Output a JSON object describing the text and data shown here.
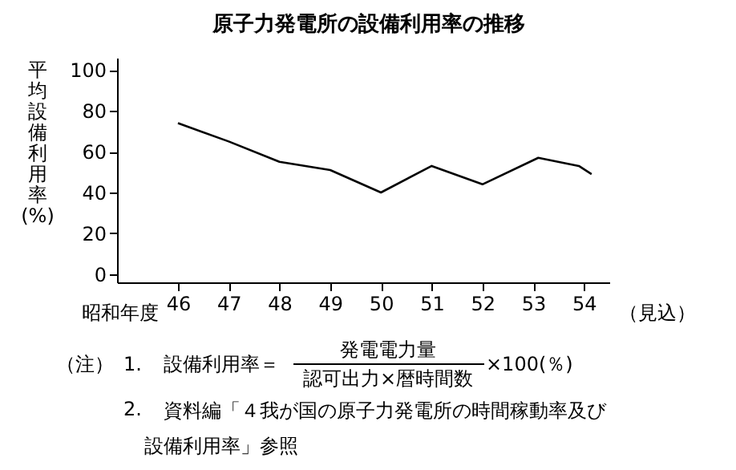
{
  "chart_data": {
    "type": "line",
    "title": "原子力発電所の設備利用率の推移",
    "xlabel": "昭和年度",
    "ylabel": "平均設備利用率(%)",
    "x": [
      46,
      47,
      48,
      49,
      50,
      51,
      52,
      53.1,
      53.9,
      54.15
    ],
    "series": [
      {
        "color": "#000000",
        "values": [
          74,
          65,
          55,
          51,
          40,
          53,
          44,
          57,
          53,
          49
        ]
      }
    ],
    "xlim": [
      44.8,
      54.5
    ],
    "xticks": [
      46,
      47,
      48,
      49,
      50,
      51,
      52,
      53,
      54
    ],
    "ylim": [
      -4,
      106
    ],
    "yticks": [
      0,
      20,
      40,
      60,
      80,
      100
    ],
    "grid": false,
    "marker": "none",
    "line_style": "solid",
    "annotations": [
      "（見込）",
      "（注）",
      "1.",
      "設備利用率＝",
      "発電電力量",
      "認可出力×暦時間数",
      "×100(％)",
      "2.",
      "資料編「４我が国の原子力発電所の時間稼動率及び",
      "設備利用率」参照"
    ]
  }
}
